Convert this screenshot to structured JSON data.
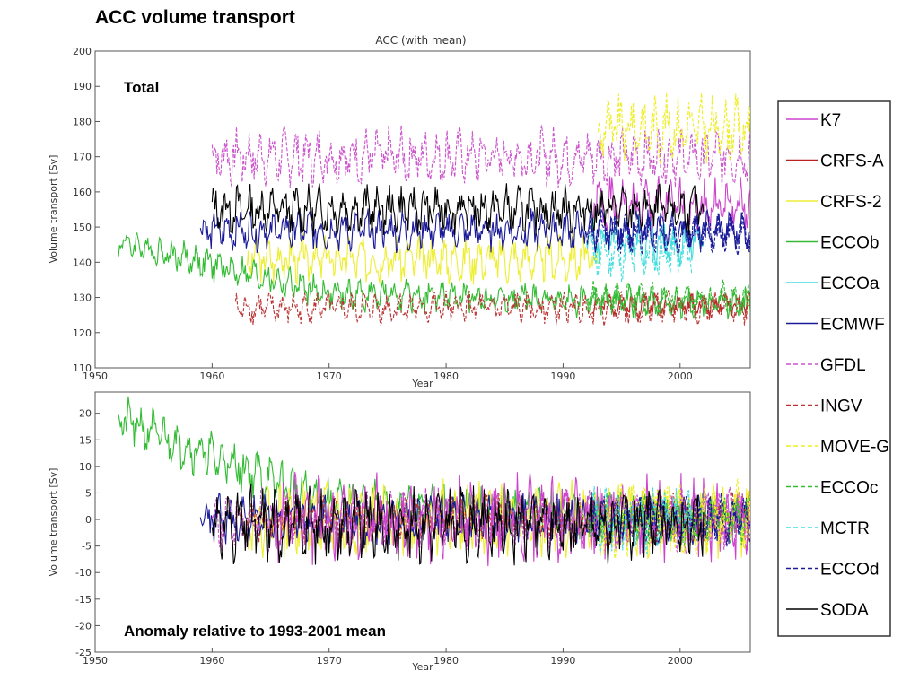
{
  "slide_title": "ACC volume transport",
  "chart_data": [
    {
      "type": "line",
      "title": "ACC (with mean)",
      "overlay_label": "Total",
      "xlabel": "Year",
      "ylabel": "Volume transport [Sv]",
      "xlim": [
        1950,
        2006
      ],
      "ylim": [
        110,
        200
      ],
      "xticks": [
        1950,
        1960,
        1970,
        1980,
        1990,
        2000
      ],
      "yticks": [
        110,
        120,
        130,
        140,
        150,
        160,
        170,
        180,
        190,
        200
      ],
      "grid": false,
      "legend_position": "right",
      "series": [
        {
          "name": "K7",
          "color": "#cc44cc",
          "dash": "solid",
          "start": 1992.5,
          "end": 2006,
          "mean": 156,
          "amp": 7,
          "seed": 1
        },
        {
          "name": "CRFS-A",
          "color": "#bb2222",
          "dash": "solid",
          "start": 1992.5,
          "end": 2006,
          "mean": 128,
          "amp": 3,
          "seed": 2
        },
        {
          "name": "CRFS-2",
          "color": "#eeee33",
          "dash": "solid",
          "start": 1963,
          "end": 1993,
          "mean": 141,
          "amp": 6,
          "seed": 3
        },
        {
          "name": "ECCOb",
          "color": "#33bb33",
          "dash": "solid",
          "start": 1952,
          "end": 2006,
          "mean": 133,
          "amp": 4,
          "seed": 4,
          "trend": [
            1952,
            146,
            1970,
            131,
            2006,
            128
          ]
        },
        {
          "name": "ECCOa",
          "color": "#44dddd",
          "dash": "solid",
          "start": 1992,
          "end": 2002,
          "mean": 146,
          "amp": 6,
          "seed": 5
        },
        {
          "name": "ECMWF",
          "color": "#1a1a99",
          "dash": "solid",
          "start": 1959,
          "end": 2006,
          "mean": 149,
          "amp": 5,
          "seed": 6
        },
        {
          "name": "GFDL",
          "color": "#cc55cc",
          "dash": "dashed",
          "start": 1960,
          "end": 2006,
          "mean": 170,
          "amp": 7,
          "seed": 7
        },
        {
          "name": "INGV",
          "color": "#bb3333",
          "dash": "dashed",
          "start": 1962,
          "end": 2006,
          "mean": 127,
          "amp": 4,
          "seed": 8
        },
        {
          "name": "MOVE-G",
          "color": "#eeee22",
          "dash": "dashed",
          "start": 1993,
          "end": 2006,
          "mean": 178,
          "amp": 8,
          "seed": 9
        },
        {
          "name": "ECCOc",
          "color": "#33bb33",
          "dash": "dashed",
          "start": 1992,
          "end": 2006,
          "mean": 130,
          "amp": 4,
          "seed": 10
        },
        {
          "name": "MCTR",
          "color": "#44dddd",
          "dash": "dashed",
          "start": 1992.5,
          "end": 2001,
          "mean": 142,
          "amp": 6,
          "seed": 11
        },
        {
          "name": "ECCOd",
          "color": "#1a1a99",
          "dash": "dashed",
          "start": 1992,
          "end": 2006,
          "mean": 148,
          "amp": 5,
          "seed": 12
        },
        {
          "name": "SODA",
          "color": "#000000",
          "dash": "solid",
          "start": 1960,
          "end": 2002,
          "mean": 155,
          "amp": 6,
          "seed": 13
        }
      ]
    },
    {
      "type": "line",
      "title": "",
      "overlay_label": "Anomaly relative to 1993-2001 mean",
      "xlabel": "Year",
      "ylabel": "Volume transport [Sv]",
      "xlim": [
        1950,
        2006
      ],
      "ylim": [
        -25,
        24
      ],
      "xticks": [
        1950,
        1960,
        1970,
        1980,
        1990,
        2000
      ],
      "yticks": [
        -25,
        -20,
        -15,
        -10,
        -5,
        0,
        5,
        10,
        15,
        20
      ],
      "grid": false,
      "series": [
        {
          "name": "ECCOb",
          "color": "#33bb33",
          "dash": "solid",
          "start": 1952,
          "end": 2006,
          "mean": 2,
          "amp": 4,
          "seed": 21,
          "trend": [
            1952,
            19,
            1970,
            3,
            2006,
            0
          ]
        },
        {
          "name": "CRFS-2",
          "color": "#eeee33",
          "dash": "solid",
          "start": 1963,
          "end": 2006,
          "mean": 0,
          "amp": 6,
          "seed": 22
        },
        {
          "name": "ECMWF",
          "color": "#1a1a99",
          "dash": "solid",
          "start": 1959,
          "end": 2006,
          "mean": 0,
          "amp": 4,
          "seed": 23
        },
        {
          "name": "INGV",
          "color": "#bb3333",
          "dash": "dashed",
          "start": 1962,
          "end": 2006,
          "mean": 0,
          "amp": 4,
          "seed": 24
        },
        {
          "name": "GFDL",
          "color": "#cc55cc",
          "dash": "dashed",
          "start": 1960,
          "end": 2006,
          "mean": 0,
          "amp": 5,
          "seed": 25
        },
        {
          "name": "K7",
          "color": "#cc44cc",
          "dash": "solid",
          "start": 1965,
          "end": 2006,
          "mean": 0,
          "amp": 7,
          "seed": 26
        },
        {
          "name": "MOVE-G",
          "color": "#eeee22",
          "dash": "dashed",
          "start": 1993,
          "end": 2006,
          "mean": 0,
          "amp": 6,
          "seed": 27
        },
        {
          "name": "ECCOc",
          "color": "#33bb33",
          "dash": "dashed",
          "start": 1992,
          "end": 2006,
          "mean": 0,
          "amp": 4,
          "seed": 28
        },
        {
          "name": "MCTR",
          "color": "#44dddd",
          "dash": "dashed",
          "start": 1992.5,
          "end": 2001,
          "mean": 0,
          "amp": 5,
          "seed": 29
        },
        {
          "name": "ECCOd",
          "color": "#1a1a99",
          "dash": "dashed",
          "start": 1992,
          "end": 2006,
          "mean": 0,
          "amp": 4,
          "seed": 30
        },
        {
          "name": "SODA",
          "color": "#000000",
          "dash": "solid",
          "start": 1960,
          "end": 2002,
          "mean": -1,
          "amp": 6,
          "seed": 31
        }
      ]
    }
  ],
  "legend": [
    {
      "name": "K7",
      "color": "#cc44cc",
      "dash": "solid"
    },
    {
      "name": "CRFS-A",
      "color": "#bb2222",
      "dash": "solid"
    },
    {
      "name": "CRFS-2",
      "color": "#eeee33",
      "dash": "solid"
    },
    {
      "name": "ECCOb",
      "color": "#33bb33",
      "dash": "solid"
    },
    {
      "name": "ECCOa",
      "color": "#44dddd",
      "dash": "solid"
    },
    {
      "name": "ECMWF",
      "color": "#1a1a99",
      "dash": "solid"
    },
    {
      "name": "GFDL",
      "color": "#cc55cc",
      "dash": "dashed"
    },
    {
      "name": "INGV",
      "color": "#bb3333",
      "dash": "dashed"
    },
    {
      "name": "MOVE-G",
      "color": "#eeee22",
      "dash": "dashed"
    },
    {
      "name": "ECCOc",
      "color": "#33bb33",
      "dash": "dashed"
    },
    {
      "name": "MCTR",
      "color": "#44dddd",
      "dash": "dashed"
    },
    {
      "name": "ECCOd",
      "color": "#1a1a99",
      "dash": "dashed"
    },
    {
      "name": "SODA",
      "color": "#000000",
      "dash": "solid"
    }
  ]
}
